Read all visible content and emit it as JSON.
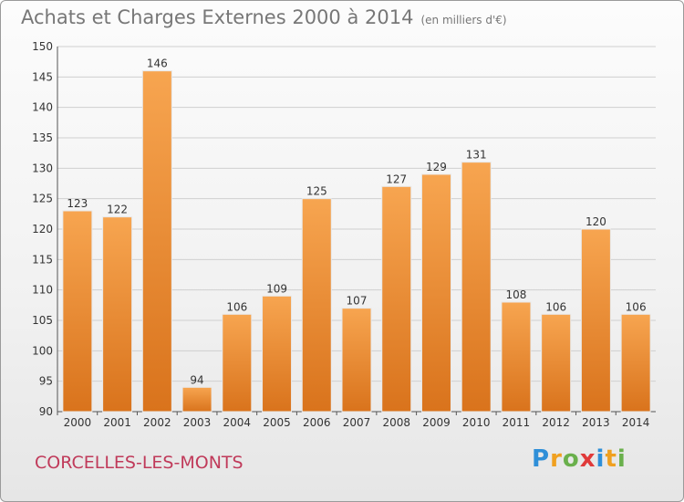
{
  "header": {
    "title": "Achats et Charges Externes 2000 à 2014",
    "subtitle": "(en milliers d'€)"
  },
  "footer": {
    "city": "CORCELLES-LES-MONTS",
    "logo": {
      "letters": [
        "P",
        "r",
        "o",
        "x",
        "i",
        "t",
        "i"
      ],
      "colors": [
        "#2f8fd8",
        "#f0a020",
        "#6ab04c",
        "#e03a3a",
        "#2f8fd8",
        "#f0a020",
        "#6ab04c"
      ]
    }
  },
  "colors": {
    "bar_top": "#f7a550",
    "bar_bottom": "#d9731c",
    "bar_stroke": "#e8e8e8",
    "grid": "#cfcfcf",
    "title": "#777777",
    "city": "#c03a5a"
  },
  "chart_data": {
    "type": "bar",
    "title": "Achats et Charges Externes 2000 à 2014",
    "xlabel": "",
    "ylabel": "",
    "ylim": [
      90,
      150
    ],
    "yticks": [
      90,
      95,
      100,
      105,
      110,
      115,
      120,
      125,
      130,
      135,
      140,
      145,
      150
    ],
    "grid": true,
    "categories": [
      "2000",
      "2001",
      "2002",
      "2003",
      "2004",
      "2005",
      "2006",
      "2007",
      "2008",
      "2009",
      "2010",
      "2011",
      "2012",
      "2013",
      "2014"
    ],
    "values": [
      123,
      122,
      146,
      94,
      106,
      109,
      125,
      107,
      127,
      129,
      131,
      108,
      106,
      120,
      106
    ]
  }
}
